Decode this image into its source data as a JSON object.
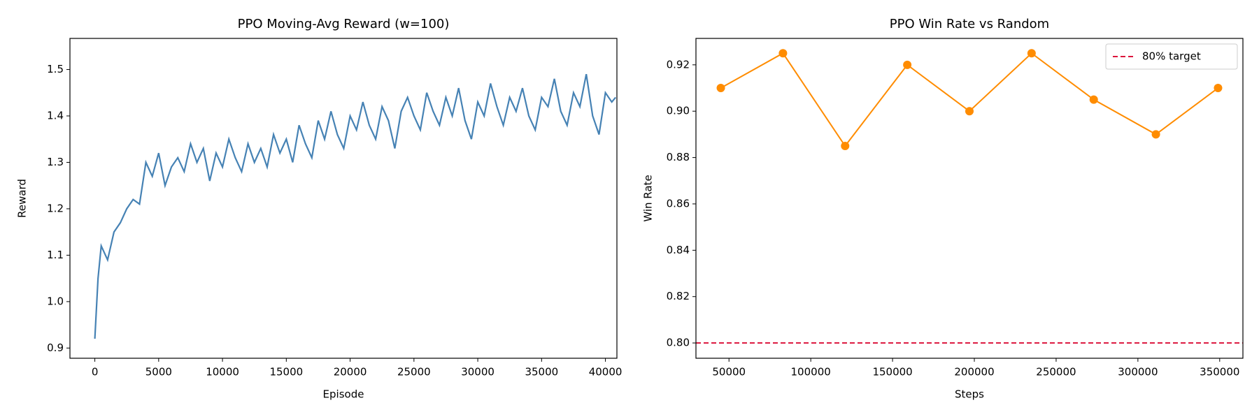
{
  "chart_data": [
    {
      "type": "line",
      "title": "PPO Moving-Avg Reward (w=100)",
      "x_label": "Episode",
      "y_label": "Reward",
      "x": [
        0,
        250,
        500,
        1000,
        1500,
        2000,
        2500,
        3000,
        3500,
        4000,
        4500,
        5000,
        5500,
        6000,
        6500,
        7000,
        7500,
        8000,
        8500,
        9000,
        9500,
        10000,
        10500,
        11000,
        11500,
        12000,
        12500,
        13000,
        13500,
        14000,
        14500,
        15000,
        15500,
        16000,
        16500,
        17000,
        17500,
        18000,
        18500,
        19000,
        19500,
        20000,
        20500,
        21000,
        21500,
        22000,
        22500,
        23000,
        23500,
        24000,
        24500,
        25000,
        25500,
        26000,
        26500,
        27000,
        27500,
        28000,
        28500,
        29000,
        29500,
        30000,
        30500,
        31000,
        31500,
        32000,
        32500,
        33000,
        33500,
        34000,
        34500,
        35000,
        35500,
        36000,
        36500,
        37000,
        37500,
        38000,
        38500,
        39000,
        39500,
        40000,
        40500,
        40800
      ],
      "series": [
        {
          "color": "#4682b4",
          "values": [
            0.92,
            1.05,
            1.12,
            1.09,
            1.15,
            1.17,
            1.2,
            1.22,
            1.21,
            1.3,
            1.27,
            1.32,
            1.25,
            1.29,
            1.31,
            1.28,
            1.34,
            1.3,
            1.33,
            1.26,
            1.32,
            1.29,
            1.35,
            1.31,
            1.28,
            1.34,
            1.3,
            1.33,
            1.29,
            1.36,
            1.32,
            1.35,
            1.3,
            1.38,
            1.34,
            1.31,
            1.39,
            1.35,
            1.41,
            1.36,
            1.33,
            1.4,
            1.37,
            1.43,
            1.38,
            1.35,
            1.42,
            1.39,
            1.33,
            1.41,
            1.44,
            1.4,
            1.37,
            1.45,
            1.41,
            1.38,
            1.44,
            1.4,
            1.46,
            1.39,
            1.35,
            1.43,
            1.4,
            1.47,
            1.42,
            1.38,
            1.44,
            1.41,
            1.46,
            1.4,
            1.37,
            1.44,
            1.42,
            1.48,
            1.41,
            1.38,
            1.45,
            1.42,
            1.49,
            1.4,
            1.36,
            1.45,
            1.43,
            1.44
          ]
        }
      ],
      "xlim": [
        -1950,
        40900
      ],
      "ylim": [
        0.878,
        1.567
      ],
      "xticks": [
        0,
        5000,
        10000,
        15000,
        20000,
        25000,
        30000,
        35000,
        40000
      ],
      "yticks": [
        0.9,
        {
          "value": 1,
          "label": "1.0"
        },
        1.1,
        1.2,
        1.3,
        1.4,
        1.5
      ]
    },
    {
      "type": "line",
      "title": "PPO Win Rate vs Random",
      "x_label": "Steps",
      "y_label": "Win Rate",
      "x": [
        45000,
        83000,
        121000,
        159000,
        197000,
        235000,
        273000,
        311000,
        349000
      ],
      "series": [
        {
          "color": "#ff8c00",
          "markers": true,
          "values": [
            0.91,
            0.925,
            0.885,
            0.92,
            0.9,
            0.925,
            0.905,
            0.89,
            0.91
          ]
        }
      ],
      "hlines": [
        {
          "value": 0.8,
          "label": "80% target",
          "color": "#dc143c",
          "dashed": true
        }
      ],
      "legend": "upper right",
      "xlim": [
        29800,
        364200
      ],
      "ylim": [
        0.7934,
        0.9314
      ],
      "xticks": [
        50000,
        100000,
        150000,
        200000,
        250000,
        300000,
        350000
      ],
      "yticks": [
        {
          "value": 0.8,
          "label": "0.80"
        },
        {
          "value": 0.82,
          "label": "0.82"
        },
        {
          "value": 0.84,
          "label": "0.84"
        },
        {
          "value": 0.86,
          "label": "0.86"
        },
        {
          "value": 0.88,
          "label": "0.88"
        },
        {
          "value": 0.9,
          "label": "0.90"
        },
        {
          "value": 0.92,
          "label": "0.92"
        }
      ]
    }
  ]
}
